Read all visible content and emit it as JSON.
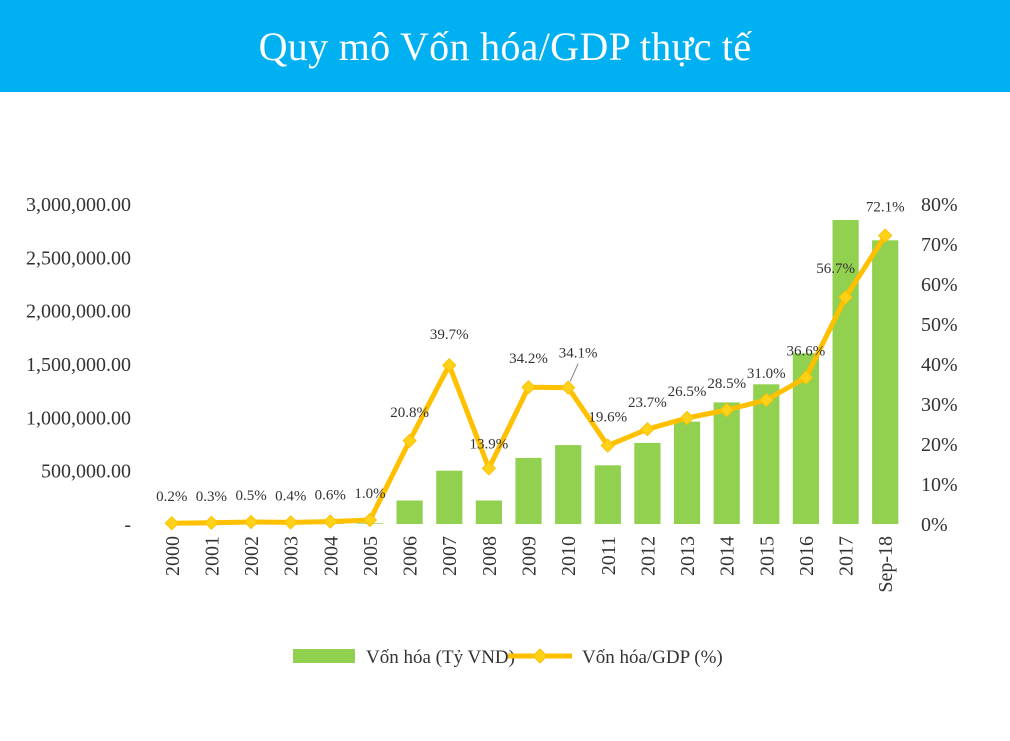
{
  "title": "Quy mô Vốn hóa/GDP thực tế",
  "colors": {
    "banner": "#00b0f0",
    "bar": "#92d050",
    "line": "#ffc000",
    "marker": "#ffd21a"
  },
  "chart_data": {
    "type": "bar+line",
    "categories": [
      "2000",
      "2001",
      "2002",
      "2003",
      "2004",
      "2005",
      "2006",
      "2007",
      "2008",
      "2009",
      "2010",
      "2011",
      "2012",
      "2013",
      "2014",
      "2015",
      "2016",
      "2017",
      "Sep-18"
    ],
    "left_axis": {
      "ylim": [
        0,
        3000000
      ],
      "ticks": [
        0,
        500000,
        1000000,
        1500000,
        2000000,
        2500000,
        3000000
      ],
      "tick_labels": [
        "-",
        "500,000.00",
        "1,000,000.00",
        "1,500,000.00",
        "2,000,000.00",
        "2,500,000.00",
        "3,000,000.00"
      ]
    },
    "right_axis": {
      "ylim": [
        0,
        80
      ],
      "ticks": [
        0,
        10,
        20,
        30,
        40,
        50,
        60,
        70,
        80
      ],
      "tick_labels": [
        "0%",
        "10%",
        "20%",
        "30%",
        "40%",
        "50%",
        "60%",
        "70%",
        "80%"
      ]
    },
    "series": [
      {
        "name": "Vốn hóa (Tỷ VND)",
        "type": "bar",
        "axis": "left",
        "values": [
          1000,
          2000,
          3000,
          3000,
          4000,
          7000,
          220000,
          500000,
          220000,
          620000,
          740000,
          550000,
          760000,
          960000,
          1140000,
          1310000,
          1600000,
          2850000,
          2660000
        ]
      },
      {
        "name": "Vốn hóa/GDP (%)",
        "type": "line",
        "axis": "right",
        "values": [
          0.2,
          0.3,
          0.5,
          0.4,
          0.6,
          1.0,
          20.8,
          39.7,
          13.9,
          34.2,
          34.1,
          19.6,
          23.7,
          26.5,
          28.5,
          31.0,
          36.6,
          56.7,
          72.1
        ],
        "labels": [
          "0.2%",
          "0.3%",
          "0.5%",
          "0.4%",
          "0.6%",
          "1.0%",
          "20.8%",
          "39.7%",
          "13.9%",
          "34.2%",
          "34.1%",
          "19.6%",
          "23.7%",
          "26.5%",
          "28.5%",
          "31.0%",
          "36.6%",
          "56.7%",
          "72.1%"
        ]
      }
    ],
    "legend": [
      "Vốn hóa (Tỷ VND)",
      "Vốn hóa/GDP (%)"
    ],
    "legend_position": "bottom",
    "grid": false
  }
}
